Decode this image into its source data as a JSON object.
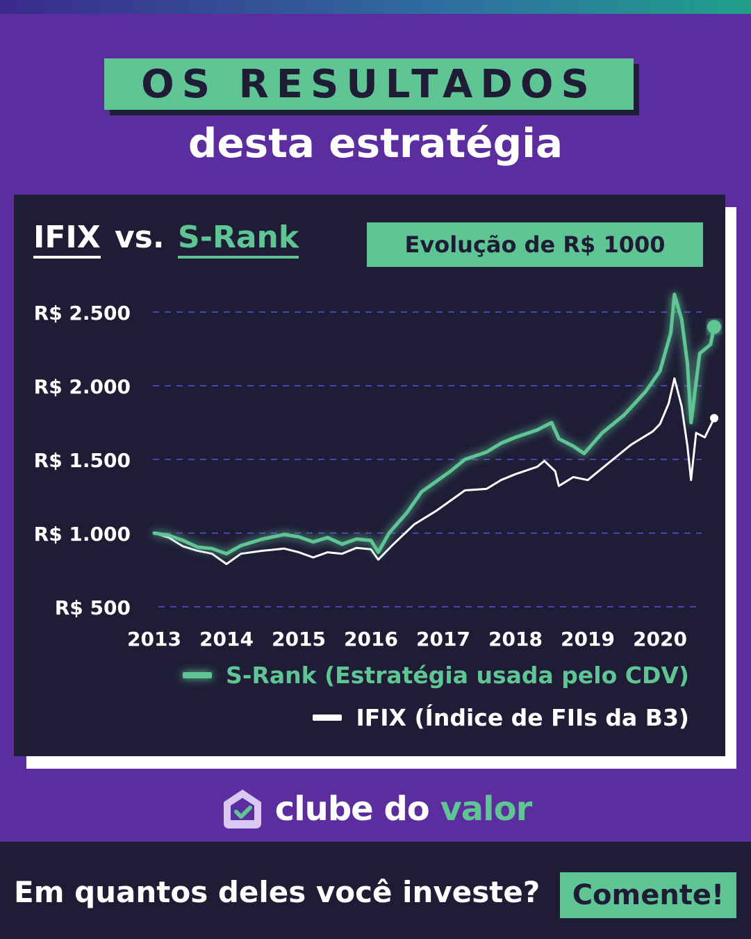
{
  "header": {
    "title": "OS RESULTADOS",
    "subtitle": "desta estratégia"
  },
  "card": {
    "title_left": "IFIX",
    "title_vs": "vs.",
    "title_right": "S-Rank",
    "badge": "Evolução de R$ 1000"
  },
  "legend": {
    "srank": "S-Rank (Estratégia usada pelo CDV)",
    "ifix": "IFIX (Índice de FIIs da B3)"
  },
  "colors": {
    "background": "#5b2d9e",
    "card": "#1f1d36",
    "accent_green": "#5fc594",
    "ifix_line": "#ffffff",
    "grid": "#4b44b0"
  },
  "chart_data": {
    "type": "line",
    "ylim": [
      500,
      2500
    ],
    "y_ticks": [
      {
        "value": 2500,
        "label": "R$ 2.500"
      },
      {
        "value": 2000,
        "label": "R$ 2.000"
      },
      {
        "value": 1500,
        "label": "R$ 1.500"
      },
      {
        "value": 1000,
        "label": "R$ 1.000"
      },
      {
        "value": 500,
        "label": "R$ 500"
      }
    ],
    "x_ticks": [
      "2013",
      "2014",
      "2015",
      "2016",
      "2017",
      "2018",
      "2019",
      "2020"
    ],
    "grid": "horizontal dashed",
    "series": [
      {
        "name": "S-Rank (Estratégia usada pelo CDV)",
        "color": "#5fc594",
        "points": [
          [
            2013.0,
            1000
          ],
          [
            2013.2,
            985
          ],
          [
            2013.4,
            950
          ],
          [
            2013.6,
            905
          ],
          [
            2013.8,
            895
          ],
          [
            2014.0,
            860
          ],
          [
            2014.2,
            915
          ],
          [
            2014.5,
            960
          ],
          [
            2014.8,
            990
          ],
          [
            2015.0,
            975
          ],
          [
            2015.2,
            940
          ],
          [
            2015.4,
            970
          ],
          [
            2015.6,
            925
          ],
          [
            2015.8,
            960
          ],
          [
            2016.0,
            950
          ],
          [
            2016.1,
            870
          ],
          [
            2016.25,
            1000
          ],
          [
            2016.5,
            1140
          ],
          [
            2016.7,
            1280
          ],
          [
            2016.9,
            1350
          ],
          [
            2017.1,
            1420
          ],
          [
            2017.3,
            1500
          ],
          [
            2017.6,
            1550
          ],
          [
            2017.8,
            1610
          ],
          [
            2018.0,
            1650
          ],
          [
            2018.3,
            1700
          ],
          [
            2018.5,
            1750
          ],
          [
            2018.6,
            1640
          ],
          [
            2018.8,
            1590
          ],
          [
            2018.95,
            1540
          ],
          [
            2019.2,
            1680
          ],
          [
            2019.5,
            1800
          ],
          [
            2019.8,
            1960
          ],
          [
            2020.0,
            2100
          ],
          [
            2020.15,
            2360
          ],
          [
            2020.2,
            2620
          ],
          [
            2020.3,
            2450
          ],
          [
            2020.38,
            2150
          ],
          [
            2020.43,
            1750
          ],
          [
            2020.55,
            2220
          ],
          [
            2020.7,
            2280
          ],
          [
            2020.75,
            2400
          ]
        ]
      },
      {
        "name": "IFIX (Índice de FIIs da B3)",
        "color": "#ffffff",
        "points": [
          [
            2013.0,
            1000
          ],
          [
            2013.2,
            970
          ],
          [
            2013.4,
            910
          ],
          [
            2013.6,
            880
          ],
          [
            2013.8,
            860
          ],
          [
            2014.0,
            790
          ],
          [
            2014.2,
            860
          ],
          [
            2014.5,
            880
          ],
          [
            2014.8,
            895
          ],
          [
            2015.0,
            870
          ],
          [
            2015.2,
            835
          ],
          [
            2015.4,
            870
          ],
          [
            2015.6,
            860
          ],
          [
            2015.8,
            900
          ],
          [
            2016.0,
            890
          ],
          [
            2016.1,
            820
          ],
          [
            2016.3,
            920
          ],
          [
            2016.6,
            1060
          ],
          [
            2016.9,
            1150
          ],
          [
            2017.1,
            1220
          ],
          [
            2017.3,
            1290
          ],
          [
            2017.6,
            1300
          ],
          [
            2017.8,
            1360
          ],
          [
            2018.0,
            1400
          ],
          [
            2018.3,
            1450
          ],
          [
            2018.4,
            1490
          ],
          [
            2018.55,
            1420
          ],
          [
            2018.6,
            1320
          ],
          [
            2018.8,
            1380
          ],
          [
            2019.0,
            1360
          ],
          [
            2019.3,
            1480
          ],
          [
            2019.6,
            1600
          ],
          [
            2019.9,
            1690
          ],
          [
            2020.0,
            1740
          ],
          [
            2020.12,
            1880
          ],
          [
            2020.2,
            2050
          ],
          [
            2020.3,
            1860
          ],
          [
            2020.38,
            1590
          ],
          [
            2020.43,
            1360
          ],
          [
            2020.5,
            1680
          ],
          [
            2020.62,
            1650
          ],
          [
            2020.75,
            1780
          ]
        ]
      }
    ]
  },
  "brand": {
    "part1": "clube do ",
    "part2": "valor"
  },
  "footer": {
    "question": "Em quantos deles você investe?",
    "cta": "Comente!"
  }
}
